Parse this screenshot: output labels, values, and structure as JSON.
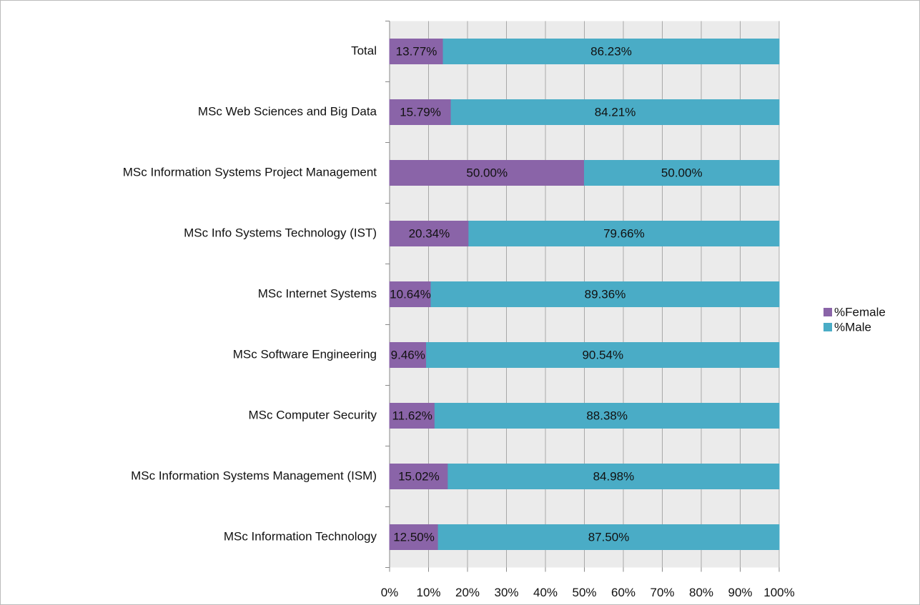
{
  "chart_data": {
    "type": "stacked_bar_horizontal",
    "categories": [
      "Total",
      "MSc Web Sciences and Big Data",
      "MSc Information Systems Project Management",
      "MSc Info Systems Technology (IST)",
      "MSc Internet Systems",
      "MSc Software Engineering",
      "MSc Computer Security",
      "MSc Information Systems Management (ISM)",
      "MSc Information Technology"
    ],
    "series": [
      {
        "name": "%Female",
        "color": "#8a64a8",
        "values": [
          13.77,
          15.79,
          50.0,
          20.34,
          10.64,
          9.46,
          11.62,
          15.02,
          12.5
        ],
        "value_labels": [
          "13.77%",
          "15.79%",
          "50.00%",
          "20.34%",
          "10.64%",
          "9.46%",
          "11.62%",
          "15.02%",
          "12.50%"
        ]
      },
      {
        "name": "%Male",
        "color": "#4aacc6",
        "values": [
          86.23,
          84.21,
          50.0,
          79.66,
          89.36,
          90.54,
          88.38,
          84.98,
          87.5
        ],
        "value_labels": [
          "86.23%",
          "84.21%",
          "50.00%",
          "79.66%",
          "89.36%",
          "90.54%",
          "88.38%",
          "84.98%",
          "87.50%"
        ]
      }
    ],
    "xlim": [
      0,
      100
    ],
    "xticks": [
      {
        "value": 0,
        "label": "0%"
      },
      {
        "value": 10,
        "label": "10%"
      },
      {
        "value": 20,
        "label": "20%"
      },
      {
        "value": 30,
        "label": "30%"
      },
      {
        "value": 40,
        "label": "40%"
      },
      {
        "value": 50,
        "label": "50%"
      },
      {
        "value": 60,
        "label": "60%"
      },
      {
        "value": 70,
        "label": "70%"
      },
      {
        "value": 80,
        "label": "80%"
      },
      {
        "value": 90,
        "label": "90%"
      },
      {
        "value": 100,
        "label": "100%"
      }
    ],
    "grid": true,
    "legend": "right"
  }
}
